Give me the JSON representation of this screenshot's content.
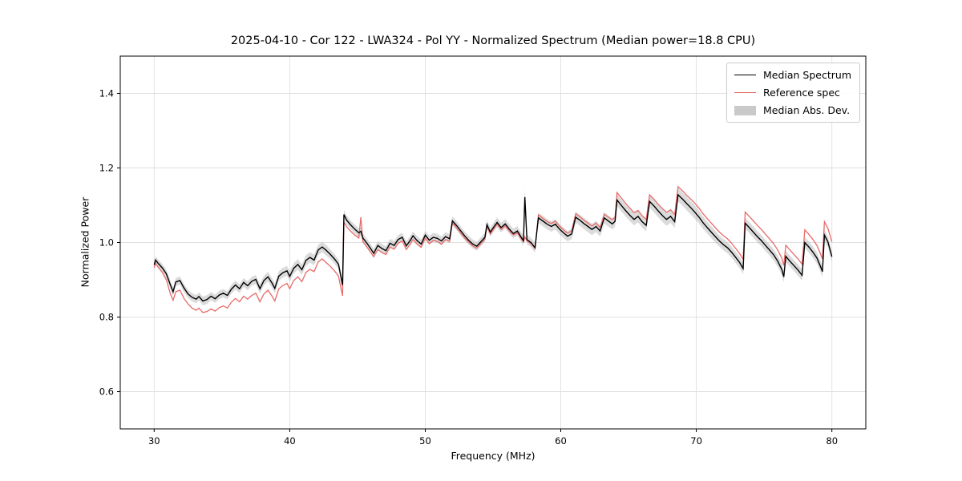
{
  "chart_data": {
    "type": "line",
    "title": "2025-04-10 - Cor 122 - LWA324 - Pol YY - Normalized Spectrum (Median power=18.8 CPU)",
    "xlabel": "Frequency (MHz)",
    "ylabel": "Normalized Power",
    "xlim": [
      27.5,
      82.5
    ],
    "ylim": [
      0.5,
      1.5
    ],
    "x_ticks": [
      30,
      40,
      50,
      60,
      70,
      80
    ],
    "y_ticks": [
      0.6,
      0.8,
      1.0,
      1.2,
      1.4
    ],
    "grid": true,
    "legend": {
      "position": "upper right",
      "entries": [
        {
          "label": "Median Spectrum",
          "type": "line",
          "color": "#000000"
        },
        {
          "label": "Reference spec",
          "type": "line",
          "color": "#e96a6a"
        },
        {
          "label": "Median Abs. Dev.",
          "type": "patch",
          "color": "#c9c9c9"
        }
      ]
    },
    "colors": {
      "median": "#000000",
      "reference": "#e96a6a",
      "band": "#bdbdbd",
      "grid": "#e0e0e0",
      "spine": "#000000"
    },
    "series_format": [
      "frequency_mhz",
      "median",
      "reference",
      "mad_halfwidth"
    ],
    "points": [
      [
        30.0,
        0.94,
        0.932,
        0.01
      ],
      [
        30.1,
        0.953,
        0.944,
        0.01
      ],
      [
        30.3,
        0.944,
        0.934,
        0.01
      ],
      [
        30.6,
        0.932,
        0.92,
        0.011
      ],
      [
        30.9,
        0.916,
        0.9,
        0.011
      ],
      [
        31.2,
        0.886,
        0.862,
        0.011
      ],
      [
        31.4,
        0.868,
        0.845,
        0.012
      ],
      [
        31.6,
        0.894,
        0.868,
        0.011
      ],
      [
        31.9,
        0.898,
        0.872,
        0.011
      ],
      [
        32.2,
        0.878,
        0.85,
        0.011
      ],
      [
        32.5,
        0.862,
        0.835,
        0.011
      ],
      [
        32.8,
        0.853,
        0.824,
        0.011
      ],
      [
        33.1,
        0.848,
        0.818,
        0.011
      ],
      [
        33.3,
        0.855,
        0.824,
        0.011
      ],
      [
        33.6,
        0.843,
        0.812,
        0.012
      ],
      [
        33.9,
        0.847,
        0.815,
        0.012
      ],
      [
        34.2,
        0.856,
        0.822,
        0.011
      ],
      [
        34.5,
        0.849,
        0.816,
        0.011
      ],
      [
        34.8,
        0.859,
        0.825,
        0.011
      ],
      [
        35.1,
        0.864,
        0.83,
        0.011
      ],
      [
        35.4,
        0.858,
        0.824,
        0.011
      ],
      [
        35.7,
        0.875,
        0.84,
        0.012
      ],
      [
        36.0,
        0.886,
        0.85,
        0.012
      ],
      [
        36.3,
        0.876,
        0.841,
        0.012
      ],
      [
        36.6,
        0.893,
        0.856,
        0.012
      ],
      [
        36.9,
        0.884,
        0.848,
        0.012
      ],
      [
        37.2,
        0.896,
        0.858,
        0.012
      ],
      [
        37.5,
        0.901,
        0.864,
        0.012
      ],
      [
        37.8,
        0.876,
        0.841,
        0.013
      ],
      [
        38.1,
        0.898,
        0.862,
        0.013
      ],
      [
        38.4,
        0.908,
        0.872,
        0.013
      ],
      [
        38.7,
        0.891,
        0.856,
        0.013
      ],
      [
        38.9,
        0.877,
        0.843,
        0.013
      ],
      [
        39.2,
        0.91,
        0.876,
        0.013
      ],
      [
        39.5,
        0.919,
        0.885,
        0.013
      ],
      [
        39.8,
        0.924,
        0.89,
        0.013
      ],
      [
        40.0,
        0.909,
        0.876,
        0.014
      ],
      [
        40.3,
        0.931,
        0.898,
        0.014
      ],
      [
        40.6,
        0.941,
        0.908,
        0.014
      ],
      [
        40.9,
        0.927,
        0.895,
        0.014
      ],
      [
        41.2,
        0.952,
        0.92,
        0.014
      ],
      [
        41.5,
        0.96,
        0.928,
        0.014
      ],
      [
        41.8,
        0.953,
        0.922,
        0.014
      ],
      [
        42.1,
        0.98,
        0.948,
        0.014
      ],
      [
        42.4,
        0.988,
        0.956,
        0.014
      ],
      [
        42.7,
        0.979,
        0.946,
        0.014
      ],
      [
        43.0,
        0.968,
        0.936,
        0.013
      ],
      [
        43.3,
        0.956,
        0.924,
        0.013
      ],
      [
        43.6,
        0.942,
        0.91,
        0.013
      ],
      [
        43.9,
        0.886,
        0.857,
        0.013
      ],
      [
        44.0,
        1.075,
        1.055,
        0.012
      ],
      [
        44.2,
        1.06,
        1.042,
        0.012
      ],
      [
        44.5,
        1.047,
        1.03,
        0.012
      ],
      [
        44.8,
        1.036,
        1.02,
        0.012
      ],
      [
        45.1,
        1.026,
        1.012,
        0.012
      ],
      [
        45.25,
        1.03,
        1.068,
        0.012
      ],
      [
        45.4,
        1.012,
        1.002,
        0.012
      ],
      [
        45.7,
        0.998,
        0.988,
        0.012
      ],
      [
        46.0,
        0.982,
        0.972,
        0.012
      ],
      [
        46.2,
        0.971,
        0.962,
        0.012
      ],
      [
        46.5,
        0.992,
        0.981,
        0.012
      ],
      [
        46.8,
        0.984,
        0.973,
        0.012
      ],
      [
        47.1,
        0.978,
        0.968,
        0.012
      ],
      [
        47.4,
        0.998,
        0.988,
        0.012
      ],
      [
        47.7,
        0.992,
        0.982,
        0.012
      ],
      [
        48.0,
        1.008,
        0.998,
        0.012
      ],
      [
        48.3,
        1.014,
        1.004,
        0.012
      ],
      [
        48.6,
        0.991,
        0.981,
        0.012
      ],
      [
        48.9,
        1.006,
        0.996,
        0.012
      ],
      [
        49.1,
        1.018,
        1.008,
        0.012
      ],
      [
        49.4,
        1.005,
        0.996,
        0.012
      ],
      [
        49.7,
        0.996,
        0.987,
        0.012
      ],
      [
        50.0,
        1.02,
        1.012,
        0.012
      ],
      [
        50.3,
        1.006,
        0.997,
        0.012
      ],
      [
        50.6,
        1.014,
        1.006,
        0.012
      ],
      [
        50.9,
        1.011,
        1.003,
        0.012
      ],
      [
        51.2,
        1.004,
        0.996,
        0.012
      ],
      [
        51.5,
        1.016,
        1.008,
        0.012
      ],
      [
        51.8,
        1.01,
        1.003,
        0.012
      ],
      [
        52.0,
        1.058,
        1.052,
        0.012
      ],
      [
        52.3,
        1.046,
        1.04,
        0.012
      ],
      [
        52.6,
        1.032,
        1.026,
        0.012
      ],
      [
        52.9,
        1.018,
        1.012,
        0.012
      ],
      [
        53.2,
        1.006,
        1.001,
        0.012
      ],
      [
        53.5,
        0.996,
        0.991,
        0.012
      ],
      [
        53.8,
        0.99,
        0.985,
        0.012
      ],
      [
        54.1,
        1.002,
        0.997,
        0.012
      ],
      [
        54.4,
        1.014,
        1.009,
        0.012
      ],
      [
        54.55,
        1.048,
        1.043,
        0.012
      ],
      [
        54.8,
        1.028,
        1.023,
        0.012
      ],
      [
        55.1,
        1.044,
        1.039,
        0.013
      ],
      [
        55.3,
        1.054,
        1.049,
        0.013
      ],
      [
        55.6,
        1.04,
        1.035,
        0.013
      ],
      [
        55.9,
        1.05,
        1.045,
        0.013
      ],
      [
        56.2,
        1.036,
        1.031,
        0.013
      ],
      [
        56.5,
        1.024,
        1.02,
        0.013
      ],
      [
        56.8,
        1.031,
        1.026,
        0.013
      ],
      [
        57.1,
        1.013,
        1.009,
        0.013
      ],
      [
        57.25,
        1.005,
        1.002,
        0.013
      ],
      [
        57.35,
        1.122,
        1.015,
        0.022
      ],
      [
        57.5,
        1.008,
        1.004,
        0.013
      ],
      [
        57.8,
        1.0,
        0.997,
        0.013
      ],
      [
        58.1,
        0.986,
        0.984,
        0.013
      ],
      [
        58.35,
        1.066,
        1.074,
        0.014
      ],
      [
        58.7,
        1.057,
        1.064,
        0.014
      ],
      [
        59.0,
        1.049,
        1.056,
        0.014
      ],
      [
        59.3,
        1.043,
        1.051,
        0.014
      ],
      [
        59.6,
        1.049,
        1.057,
        0.014
      ],
      [
        59.9,
        1.036,
        1.044,
        0.014
      ],
      [
        60.2,
        1.026,
        1.034,
        0.014
      ],
      [
        60.5,
        1.017,
        1.025,
        0.014
      ],
      [
        60.8,
        1.023,
        1.031,
        0.014
      ],
      [
        61.1,
        1.068,
        1.077,
        0.015
      ],
      [
        61.4,
        1.06,
        1.069,
        0.015
      ],
      [
        61.7,
        1.051,
        1.06,
        0.015
      ],
      [
        62.0,
        1.043,
        1.052,
        0.015
      ],
      [
        62.3,
        1.035,
        1.044,
        0.015
      ],
      [
        62.6,
        1.043,
        1.052,
        0.015
      ],
      [
        62.9,
        1.031,
        1.04,
        0.015
      ],
      [
        63.2,
        1.066,
        1.076,
        0.015
      ],
      [
        63.5,
        1.058,
        1.068,
        0.015
      ],
      [
        63.8,
        1.05,
        1.061,
        0.015
      ],
      [
        64.0,
        1.057,
        1.068,
        0.015
      ],
      [
        64.15,
        1.114,
        1.134,
        0.016
      ],
      [
        64.5,
        1.098,
        1.118,
        0.016
      ],
      [
        64.8,
        1.085,
        1.104,
        0.016
      ],
      [
        65.1,
        1.073,
        1.092,
        0.016
      ],
      [
        65.4,
        1.062,
        1.08,
        0.016
      ],
      [
        65.7,
        1.07,
        1.086,
        0.016
      ],
      [
        66.0,
        1.056,
        1.072,
        0.016
      ],
      [
        66.3,
        1.046,
        1.062,
        0.016
      ],
      [
        66.55,
        1.11,
        1.128,
        0.017
      ],
      [
        66.9,
        1.097,
        1.115,
        0.017
      ],
      [
        67.2,
        1.084,
        1.102,
        0.017
      ],
      [
        67.5,
        1.072,
        1.091,
        0.017
      ],
      [
        67.8,
        1.062,
        1.081,
        0.017
      ],
      [
        68.1,
        1.07,
        1.088,
        0.017
      ],
      [
        68.4,
        1.056,
        1.075,
        0.017
      ],
      [
        68.65,
        1.128,
        1.15,
        0.018
      ],
      [
        69.0,
        1.116,
        1.138,
        0.018
      ],
      [
        69.3,
        1.104,
        1.126,
        0.018
      ],
      [
        69.6,
        1.093,
        1.116,
        0.018
      ],
      [
        69.9,
        1.081,
        1.105,
        0.018
      ],
      [
        70.2,
        1.068,
        1.092,
        0.017
      ],
      [
        70.5,
        1.053,
        1.077,
        0.017
      ],
      [
        70.8,
        1.04,
        1.064,
        0.016
      ],
      [
        71.1,
        1.028,
        1.052,
        0.016
      ],
      [
        71.4,
        1.016,
        1.04,
        0.016
      ],
      [
        71.7,
        1.004,
        1.028,
        0.015
      ],
      [
        72.0,
        0.994,
        1.018,
        0.015
      ],
      [
        72.3,
        0.986,
        1.01,
        0.015
      ],
      [
        72.6,
        0.974,
        0.998,
        0.015
      ],
      [
        72.9,
        0.96,
        0.984,
        0.015
      ],
      [
        73.2,
        0.946,
        0.97,
        0.015
      ],
      [
        73.45,
        0.93,
        0.955,
        0.015
      ],
      [
        73.6,
        1.052,
        1.082,
        0.015
      ],
      [
        73.9,
        1.04,
        1.07,
        0.015
      ],
      [
        74.2,
        1.028,
        1.058,
        0.015
      ],
      [
        74.5,
        1.016,
        1.046,
        0.015
      ],
      [
        74.8,
        1.005,
        1.035,
        0.015
      ],
      [
        75.1,
        0.992,
        1.022,
        0.015
      ],
      [
        75.4,
        0.98,
        1.01,
        0.015
      ],
      [
        75.7,
        0.967,
        0.997,
        0.015
      ],
      [
        76.0,
        0.95,
        0.98,
        0.015
      ],
      [
        76.3,
        0.928,
        0.958,
        0.015
      ],
      [
        76.45,
        0.908,
        0.938,
        0.015
      ],
      [
        76.6,
        0.963,
        0.993,
        0.015
      ],
      [
        76.9,
        0.95,
        0.98,
        0.015
      ],
      [
        77.2,
        0.938,
        0.968,
        0.015
      ],
      [
        77.5,
        0.926,
        0.956,
        0.015
      ],
      [
        77.8,
        0.912,
        0.942,
        0.015
      ],
      [
        78.0,
        1.0,
        1.034,
        0.015
      ],
      [
        78.3,
        0.988,
        1.022,
        0.015
      ],
      [
        78.6,
        0.974,
        1.008,
        0.015
      ],
      [
        78.9,
        0.958,
        0.992,
        0.015
      ],
      [
        79.15,
        0.936,
        0.97,
        0.015
      ],
      [
        79.3,
        0.922,
        0.956,
        0.015
      ],
      [
        79.45,
        1.02,
        1.056,
        0.015
      ],
      [
        79.7,
        1.002,
        1.038,
        0.015
      ],
      [
        80.0,
        0.962,
        1.002,
        0.014
      ]
    ]
  }
}
